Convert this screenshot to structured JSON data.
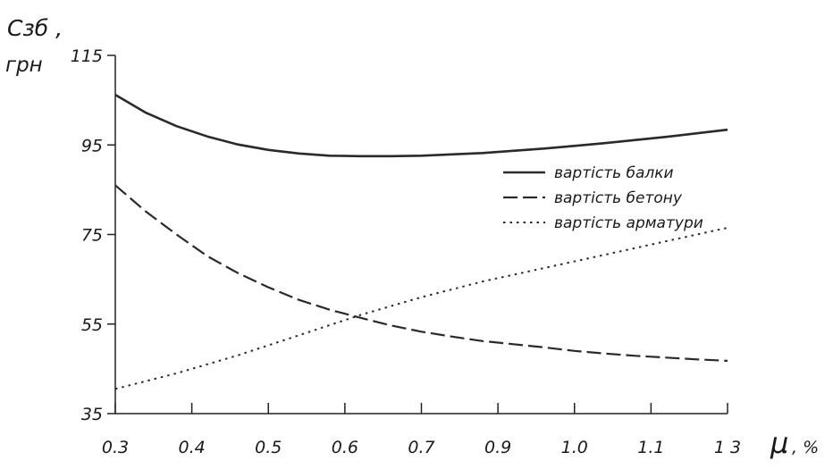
{
  "chart_data": {
    "type": "line",
    "ylabel_line1": "Сзб ,",
    "ylabel_line2": "грн",
    "xlabel_symbol": "μ",
    "xlabel_unit": ", %",
    "xlim": [
      0.3,
      1.3
    ],
    "ylim": [
      35,
      115
    ],
    "x_ticks": [
      0.3,
      0.4,
      0.5,
      0.6,
      0.7,
      0.9,
      1.0,
      1.1,
      1.3
    ],
    "x_tick_labels": [
      "0.3",
      "0.4",
      "0.5",
      "0.6",
      "0.7",
      "0.9",
      "1.0",
      "1.1",
      "1 3"
    ],
    "y_ticks": [
      35,
      55,
      75,
      95,
      115
    ],
    "y_tick_labels": [
      "35",
      "55",
      "75",
      "95",
      "115"
    ],
    "grid": false,
    "legend_position": "right",
    "series": [
      {
        "name": "вартість балки",
        "style": "solid",
        "x": [
          0.3,
          0.35,
          0.4,
          0.45,
          0.5,
          0.55,
          0.6,
          0.65,
          0.7,
          0.75,
          0.8,
          0.85,
          0.9,
          0.95,
          1.0,
          1.05,
          1.1,
          1.15,
          1.2,
          1.25,
          1.3
        ],
        "y": [
          106.2,
          102.2,
          99.2,
          96.9,
          95.1,
          93.9,
          93.1,
          92.6,
          92.5,
          92.5,
          92.6,
          92.9,
          93.2,
          93.7,
          94.2,
          94.8,
          95.4,
          96.1,
          96.8,
          97.6,
          98.4
        ]
      },
      {
        "name": "вартість бетону",
        "style": "dashed",
        "x": [
          0.3,
          0.35,
          0.4,
          0.45,
          0.5,
          0.55,
          0.6,
          0.65,
          0.7,
          0.75,
          0.8,
          0.85,
          0.9,
          0.95,
          1.0,
          1.05,
          1.1,
          1.15,
          1.2,
          1.25,
          1.3
        ],
        "y": [
          86.0,
          80.1,
          75.0,
          70.2,
          66.4,
          63.2,
          60.4,
          58.2,
          56.4,
          54.7,
          53.3,
          52.2,
          51.2,
          50.5,
          49.8,
          49.0,
          48.4,
          47.9,
          47.5,
          47.1,
          46.8
        ]
      },
      {
        "name": "вартість арматури",
        "style": "dotted",
        "x": [
          0.3,
          0.4,
          0.5,
          0.6,
          0.7,
          0.8,
          0.9,
          1.0,
          1.1,
          1.2,
          1.3
        ],
        "y": [
          40.5,
          44.0,
          48.0,
          52.5,
          57.0,
          61.0,
          64.5,
          67.5,
          70.5,
          73.5,
          76.5
        ]
      }
    ]
  }
}
